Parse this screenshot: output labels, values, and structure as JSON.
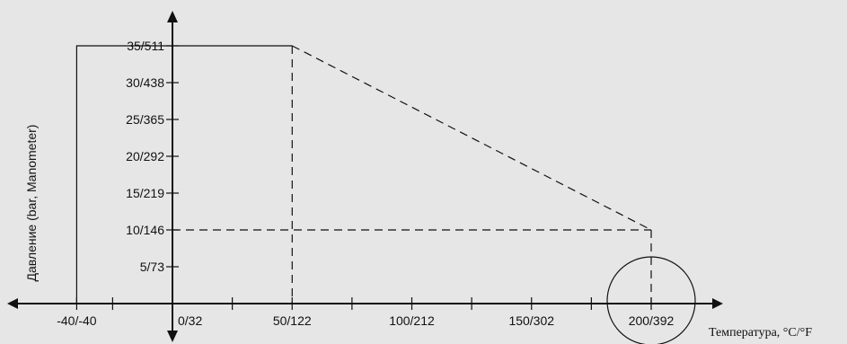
{
  "chart_data": {
    "type": "line",
    "title": "",
    "xlabel": "Температура, °C/°F",
    "ylabel": "Давление (bar, Manometer)",
    "x_ticks": [
      {
        "value": -40,
        "label": "-40/-40"
      },
      {
        "value": 0,
        "label": "0/32"
      },
      {
        "value": 50,
        "label": "50/122"
      },
      {
        "value": 100,
        "label": "100/212"
      },
      {
        "value": 150,
        "label": "150/302"
      },
      {
        "value": 200,
        "label": "200/392"
      }
    ],
    "x_minor_ticks": [
      -25,
      25,
      75,
      125,
      175
    ],
    "y_ticks": [
      {
        "value": 5,
        "label": "5/73"
      },
      {
        "value": 10,
        "label": "10/146"
      },
      {
        "value": 15,
        "label": "15/219"
      },
      {
        "value": 20,
        "label": "20/292"
      },
      {
        "value": 25,
        "label": "25/365"
      },
      {
        "value": 30,
        "label": "30/438"
      },
      {
        "value": 35,
        "label": "35/511"
      }
    ],
    "xlim": [
      -40,
      200
    ],
    "ylim": [
      0,
      35
    ],
    "series": [
      {
        "style": "solid",
        "x": [
          -40,
          -40,
          50
        ],
        "y": [
          0,
          35,
          35
        ]
      },
      {
        "style": "dashed",
        "x": [
          50,
          200
        ],
        "y": [
          35,
          10
        ]
      },
      {
        "style": "dashed",
        "x": [
          50,
          50
        ],
        "y": [
          35,
          0
        ]
      },
      {
        "style": "dashed",
        "x": [
          0,
          200
        ],
        "y": [
          10,
          10
        ]
      },
      {
        "style": "dashed",
        "x": [
          200,
          200
        ],
        "y": [
          10,
          0
        ]
      }
    ],
    "highlight": {
      "x": 200,
      "y": 0,
      "shape": "circle"
    },
    "grid": false,
    "legend": "none"
  }
}
